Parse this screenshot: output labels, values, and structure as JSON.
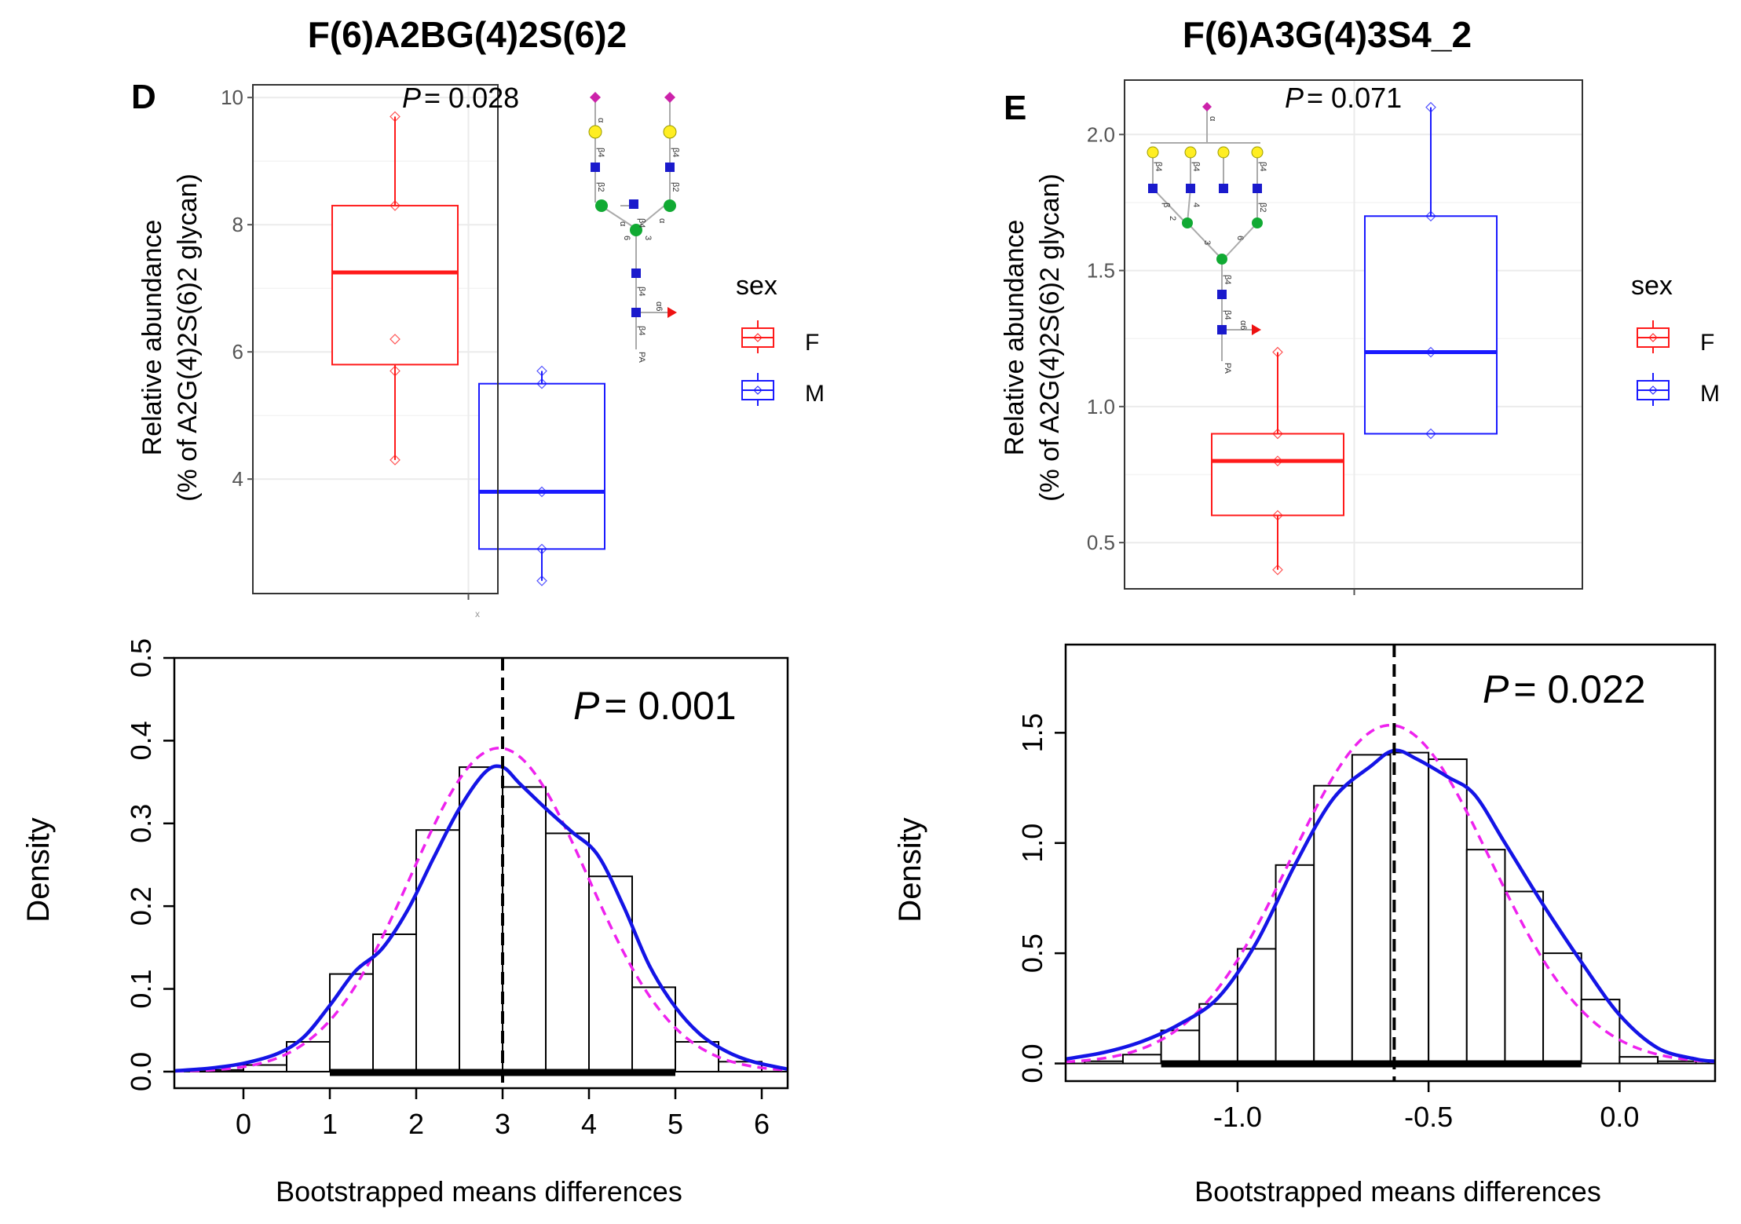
{
  "figure": {
    "colors": {
      "female": "#ff1a1a",
      "male": "#1a1aff",
      "density_curve": "#1414e6",
      "normal_curve": "#ee22ee",
      "axis": "#000000",
      "grid": "#ebebeb",
      "panel_border": "#333333"
    }
  },
  "chart_data": [
    {
      "id": "D-box",
      "type": "box",
      "title": "F(6)A2BG(4)2S(6)2",
      "panel_letter": "D",
      "ylabel_line1": "Relative abundance",
      "ylabel_line2": "(% of A2G(4)2S(6)2 glycan)",
      "ylim": [
        2.2,
        10.2
      ],
      "yticks": [
        4,
        6,
        8,
        10
      ],
      "ytick_labels": [
        "4",
        "6",
        "8",
        "10"
      ],
      "xtick_label": "x",
      "p_label": "P",
      "p_value": "= 0.028",
      "legend": {
        "title": "sex",
        "entries": [
          "F",
          "M"
        ]
      },
      "glycan_labels": [
        "α",
        "β4",
        "β2",
        "α",
        "β4",
        "β2",
        "α",
        "β4",
        "6",
        "3",
        "β4",
        "β4",
        "α6",
        "PA",
        "α",
        "β4",
        "β2",
        "α"
      ],
      "groups": [
        {
          "name": "F",
          "q1": 5.8,
          "median": 7.25,
          "q3": 8.3,
          "whisker_low": 4.3,
          "whisker_high": 9.7,
          "points": [
            4.3,
            5.7,
            6.2,
            8.3,
            9.7
          ]
        },
        {
          "name": "M",
          "q1": 2.9,
          "median": 3.8,
          "q3": 5.5,
          "whisker_low": 2.4,
          "whisker_high": 5.7,
          "points": [
            2.4,
            2.9,
            3.8,
            5.5,
            5.7
          ]
        }
      ]
    },
    {
      "id": "E-box",
      "type": "box",
      "title": "F(6)A3G(4)3S4_2",
      "panel_letter": "E",
      "ylabel_line1": "Relative abundance",
      "ylabel_line2": "(% of A2G(4)2S(6)2 glycan)",
      "ylim": [
        0.33,
        2.2
      ],
      "yticks": [
        0.5,
        1.0,
        1.5,
        2.0
      ],
      "ytick_labels": [
        "0.5",
        "1.0",
        "1.5",
        "2.0"
      ],
      "p_label": "P",
      "p_value": "= 0.071",
      "legend": {
        "title": "sex",
        "entries": [
          "F",
          "M"
        ]
      },
      "glycan_labels": [
        "α",
        "β4",
        "β4",
        "β4",
        "β",
        "2",
        "4",
        "β2",
        "6",
        "3",
        "β4",
        "β4",
        "α6",
        "PA"
      ],
      "groups": [
        {
          "name": "F",
          "q1": 0.6,
          "median": 0.8,
          "q3": 0.9,
          "whisker_low": 0.4,
          "whisker_high": 1.2,
          "points": [
            0.4,
            0.6,
            0.8,
            0.9,
            1.2
          ]
        },
        {
          "name": "M",
          "q1": 0.9,
          "median": 1.2,
          "q3": 1.7,
          "whisker_low": 0.9,
          "whisker_high": 2.1,
          "points": [
            0.9,
            1.2,
            1.7,
            2.1
          ]
        }
      ]
    },
    {
      "id": "D-hist",
      "type": "histogram",
      "ylabel": "Density",
      "xlabel": "Bootstrapped means differences",
      "p_label": "P",
      "p_value": "= 0.001",
      "xlim": [
        -0.8,
        6.3
      ],
      "ylim": [
        -0.02,
        0.5
      ],
      "xticks": [
        0,
        1,
        2,
        3,
        4,
        5,
        6
      ],
      "xtick_labels": [
        "0",
        "1",
        "2",
        "3",
        "4",
        "5",
        "6"
      ],
      "yticks": [
        0.0,
        0.1,
        0.2,
        0.3,
        0.4,
        0.5
      ],
      "ytick_labels": [
        "0.0",
        "0.1",
        "0.2",
        "0.3",
        "0.4",
        "0.5"
      ],
      "bin_edges": [
        -0.5,
        0,
        0.5,
        1,
        1.5,
        2,
        2.5,
        3,
        3.5,
        4,
        4.5,
        5,
        5.5,
        6
      ],
      "densities": [
        0.002,
        0.008,
        0.036,
        0.118,
        0.166,
        0.292,
        0.368,
        0.344,
        0.288,
        0.236,
        0.102,
        0.036,
        0.012
      ],
      "vline": 3.0,
      "ci": [
        1.0,
        5.0
      ],
      "kde": [
        [
          -0.8,
          0.001
        ],
        [
          -0.4,
          0.004
        ],
        [
          0,
          0.01
        ],
        [
          0.4,
          0.022
        ],
        [
          0.7,
          0.042
        ],
        [
          1.0,
          0.08
        ],
        [
          1.3,
          0.122
        ],
        [
          1.6,
          0.148
        ],
        [
          1.9,
          0.195
        ],
        [
          2.2,
          0.258
        ],
        [
          2.5,
          0.318
        ],
        [
          2.8,
          0.362
        ],
        [
          3.0,
          0.368
        ],
        [
          3.2,
          0.348
        ],
        [
          3.5,
          0.318
        ],
        [
          3.8,
          0.29
        ],
        [
          4.1,
          0.262
        ],
        [
          4.4,
          0.2
        ],
        [
          4.7,
          0.128
        ],
        [
          5.0,
          0.078
        ],
        [
          5.3,
          0.044
        ],
        [
          5.6,
          0.024
        ],
        [
          5.9,
          0.012
        ],
        [
          6.3,
          0.003
        ]
      ],
      "normal": {
        "mean": 2.96,
        "sd": 1.02
      }
    },
    {
      "id": "E-hist",
      "type": "histogram",
      "ylabel": "Density",
      "xlabel": "Bootstrapped means differences",
      "p_label": "P",
      "p_value": "= 0.022",
      "xlim": [
        -1.45,
        0.25
      ],
      "ylim": [
        -0.08,
        1.9
      ],
      "xticks": [
        -1.0,
        -0.5,
        0.0
      ],
      "xtick_labels": [
        "-1.0",
        "-0.5",
        "0.0"
      ],
      "yticks": [
        0.0,
        0.5,
        1.0,
        1.5
      ],
      "ytick_labels": [
        "0.0",
        "0.5",
        "1.0",
        "1.5"
      ],
      "bin_edges": [
        -1.4,
        -1.3,
        -1.2,
        -1.1,
        -1.0,
        -0.9,
        -0.8,
        -0.7,
        -0.6,
        -0.5,
        -0.4,
        -0.3,
        -0.2,
        -0.1,
        0.0,
        0.1,
        0.2
      ],
      "densities": [
        0.01,
        0.04,
        0.15,
        0.27,
        0.52,
        0.9,
        1.26,
        1.4,
        1.41,
        1.38,
        0.97,
        0.78,
        0.5,
        0.29,
        0.03,
        0.01
      ],
      "vline": -0.59,
      "ci": [
        -1.2,
        -0.1
      ],
      "kde": [
        [
          -1.45,
          0.02
        ],
        [
          -1.35,
          0.05
        ],
        [
          -1.25,
          0.1
        ],
        [
          -1.15,
          0.18
        ],
        [
          -1.05,
          0.3
        ],
        [
          -0.95,
          0.55
        ],
        [
          -0.85,
          0.9
        ],
        [
          -0.75,
          1.2
        ],
        [
          -0.65,
          1.35
        ],
        [
          -0.59,
          1.42
        ],
        [
          -0.53,
          1.38
        ],
        [
          -0.45,
          1.3
        ],
        [
          -0.38,
          1.22
        ],
        [
          -0.3,
          1.0
        ],
        [
          -0.2,
          0.72
        ],
        [
          -0.1,
          0.46
        ],
        [
          0.0,
          0.22
        ],
        [
          0.1,
          0.07
        ],
        [
          0.2,
          0.02
        ],
        [
          0.25,
          0.01
        ]
      ],
      "normal": {
        "mean": -0.6,
        "sd": 0.26
      }
    }
  ]
}
